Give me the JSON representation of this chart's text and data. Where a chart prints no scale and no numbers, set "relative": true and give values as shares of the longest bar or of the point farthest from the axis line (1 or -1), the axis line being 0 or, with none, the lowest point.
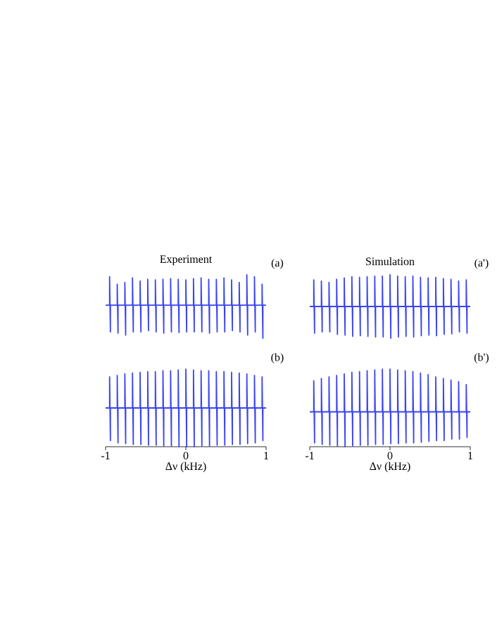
{
  "chart_data": [
    {
      "type": "line",
      "title": "Experiment",
      "annotations": [
        "(a)"
      ],
      "relative": true,
      "tick_labels": false,
      "xlim": [
        -1,
        1
      ],
      "color": "#3a44f0",
      "x": [
        -1,
        -0.95,
        -0.95,
        -0.94,
        -0.94,
        -0.855,
        -0.855,
        -0.845,
        -0.845,
        -0.76,
        -0.76,
        -0.75,
        -0.75,
        -0.665,
        -0.665,
        -0.655,
        -0.655,
        -0.57,
        -0.57,
        -0.56,
        -0.56,
        -0.475,
        -0.475,
        -0.465,
        -0.465,
        -0.38,
        -0.38,
        -0.37,
        -0.37,
        -0.285,
        -0.285,
        -0.275,
        -0.275,
        -0.19,
        -0.19,
        -0.18,
        -0.18,
        -0.095,
        -0.095,
        -0.085,
        -0.085,
        0,
        0,
        0.01,
        0.01,
        0.095,
        0.095,
        0.105,
        0.105,
        0.19,
        0.19,
        0.2,
        0.2,
        0.285,
        0.285,
        0.295,
        0.295,
        0.38,
        0.38,
        0.39,
        0.39,
        0.475,
        0.475,
        0.485,
        0.485,
        0.57,
        0.57,
        0.58,
        0.58,
        0.665,
        0.665,
        0.675,
        0.675,
        0.76,
        0.76,
        0.77,
        0.77,
        0.855,
        0.855,
        0.865,
        0.865,
        0.95,
        0.95,
        0.96,
        0.96,
        1
      ],
      "values": [
        0.52,
        0.52,
        0.97,
        0.1,
        0.52,
        0.52,
        0.85,
        0.08,
        0.52,
        0.52,
        0.88,
        0.05,
        0.52,
        0.52,
        0.95,
        0.1,
        0.52,
        0.52,
        0.9,
        0.1,
        0.52,
        0.52,
        0.93,
        0.12,
        0.52,
        0.52,
        0.92,
        0.1,
        0.52,
        0.52,
        0.93,
        0.08,
        0.52,
        0.52,
        0.94,
        0.1,
        0.52,
        0.52,
        0.93,
        0.09,
        0.52,
        0.52,
        0.92,
        0.1,
        0.52,
        0.52,
        0.94,
        0.1,
        0.52,
        0.52,
        0.95,
        0.1,
        0.52,
        0.52,
        0.93,
        0.08,
        0.52,
        0.52,
        0.93,
        0.1,
        0.52,
        0.52,
        0.95,
        0.1,
        0.52,
        0.52,
        0.92,
        0.12,
        0.52,
        0.52,
        0.88,
        0.1,
        0.52,
        0.52,
        1,
        0.05,
        0.52,
        0.52,
        0.97,
        0.1,
        0.52,
        0.52,
        0.85,
        0,
        0.52,
        0.52
      ]
    },
    {
      "type": "line",
      "title": "Simulation",
      "annotations": [
        "(a')"
      ],
      "relative": true,
      "tick_labels": false,
      "xlim": [
        -1,
        1
      ],
      "color": "#3a44f0",
      "x": [
        -1,
        -0.95,
        -0.95,
        -0.94,
        -0.94,
        -0.855,
        -0.855,
        -0.845,
        -0.845,
        -0.76,
        -0.76,
        -0.75,
        -0.75,
        -0.665,
        -0.665,
        -0.655,
        -0.655,
        -0.57,
        -0.57,
        -0.56,
        -0.56,
        -0.475,
        -0.475,
        -0.465,
        -0.465,
        -0.38,
        -0.38,
        -0.37,
        -0.37,
        -0.285,
        -0.285,
        -0.275,
        -0.275,
        -0.19,
        -0.19,
        -0.18,
        -0.18,
        -0.095,
        -0.095,
        -0.085,
        -0.085,
        0,
        0,
        0.01,
        0.01,
        0.095,
        0.095,
        0.105,
        0.105,
        0.19,
        0.19,
        0.2,
        0.2,
        0.285,
        0.285,
        0.295,
        0.295,
        0.38,
        0.38,
        0.39,
        0.39,
        0.475,
        0.475,
        0.485,
        0.485,
        0.57,
        0.57,
        0.58,
        0.58,
        0.665,
        0.665,
        0.675,
        0.675,
        0.76,
        0.76,
        0.77,
        0.77,
        0.855,
        0.855,
        0.865,
        0.865,
        0.95,
        0.95,
        0.96,
        0.96,
        1
      ],
      "values": [
        0.5,
        0.5,
        0.92,
        0.08,
        0.5,
        0.5,
        0.9,
        0.1,
        0.5,
        0.5,
        0.88,
        0.1,
        0.5,
        0.5,
        0.93,
        0.06,
        0.5,
        0.5,
        0.95,
        0.05,
        0.5,
        0.5,
        0.97,
        0.03,
        0.5,
        0.5,
        0.96,
        0.04,
        0.5,
        0.5,
        0.97,
        0.03,
        0.5,
        0.5,
        0.98,
        0.02,
        0.5,
        0.5,
        0.98,
        0.02,
        0.5,
        0.5,
        1,
        0,
        0.5,
        0.5,
        0.98,
        0.02,
        0.5,
        0.5,
        0.97,
        0.03,
        0.5,
        0.5,
        0.98,
        0.02,
        0.5,
        0.5,
        0.96,
        0.04,
        0.5,
        0.5,
        0.95,
        0.05,
        0.5,
        0.5,
        0.96,
        0.04,
        0.5,
        0.5,
        0.94,
        0.06,
        0.5,
        0.5,
        0.93,
        0.07,
        0.5,
        0.5,
        0.9,
        0.1,
        0.5,
        0.5,
        0.92,
        0.08,
        0.5,
        0.5
      ]
    },
    {
      "type": "line",
      "xlabel": "Δν (kHz)",
      "annotations": [
        "(b)"
      ],
      "relative": true,
      "tick_labels": "x",
      "xlim": [
        -1,
        1
      ],
      "xticks": [
        -1,
        0,
        1
      ],
      "color": "#3a44f0",
      "x": [
        -1,
        -0.95,
        -0.95,
        -0.94,
        -0.94,
        -0.855,
        -0.855,
        -0.845,
        -0.845,
        -0.76,
        -0.76,
        -0.75,
        -0.75,
        -0.665,
        -0.665,
        -0.655,
        -0.655,
        -0.57,
        -0.57,
        -0.56,
        -0.56,
        -0.475,
        -0.475,
        -0.465,
        -0.465,
        -0.38,
        -0.38,
        -0.37,
        -0.37,
        -0.285,
        -0.285,
        -0.275,
        -0.275,
        -0.19,
        -0.19,
        -0.18,
        -0.18,
        -0.095,
        -0.095,
        -0.085,
        -0.085,
        0,
        0,
        0.01,
        0.01,
        0.095,
        0.095,
        0.105,
        0.105,
        0.19,
        0.19,
        0.2,
        0.2,
        0.285,
        0.285,
        0.295,
        0.295,
        0.38,
        0.38,
        0.39,
        0.39,
        0.475,
        0.475,
        0.485,
        0.485,
        0.57,
        0.57,
        0.58,
        0.58,
        0.665,
        0.665,
        0.675,
        0.675,
        0.76,
        0.76,
        0.77,
        0.77,
        0.855,
        0.855,
        0.865,
        0.865,
        0.95,
        0.95,
        0.96,
        0.96,
        1
      ],
      "values": [
        0.5,
        0.5,
        0.9,
        0.08,
        0.5,
        0.5,
        0.92,
        0.05,
        0.5,
        0.5,
        0.94,
        0.04,
        0.5,
        0.5,
        0.95,
        0.03,
        0.5,
        0.5,
        0.96,
        0.03,
        0.5,
        0.5,
        0.97,
        0.02,
        0.5,
        0.5,
        0.97,
        0.02,
        0.5,
        0.5,
        0.98,
        0.01,
        0.5,
        0.5,
        0.98,
        0.01,
        0.5,
        0.5,
        0.99,
        0,
        0.5,
        0.5,
        1,
        0,
        0.5,
        0.5,
        0.99,
        0,
        0.5,
        0.5,
        0.98,
        0.01,
        0.5,
        0.5,
        0.98,
        0.01,
        0.5,
        0.5,
        0.97,
        0.02,
        0.5,
        0.5,
        0.97,
        0.02,
        0.5,
        0.5,
        0.96,
        0.03,
        0.5,
        0.5,
        0.95,
        0.03,
        0.5,
        0.5,
        0.94,
        0.04,
        0.5,
        0.5,
        0.92,
        0.05,
        0.5,
        0.5,
        0.9,
        0.08,
        0.5,
        0.5
      ]
    },
    {
      "type": "line",
      "xlabel": "Δν (kHz)",
      "annotations": [
        "(b')"
      ],
      "relative": true,
      "tick_labels": "x",
      "xlim": [
        -1,
        1
      ],
      "xticks": [
        -1,
        0,
        1
      ],
      "color": "#3a44f0",
      "x": [
        -1,
        -0.95,
        -0.95,
        -0.94,
        -0.94,
        -0.855,
        -0.855,
        -0.845,
        -0.845,
        -0.76,
        -0.76,
        -0.75,
        -0.75,
        -0.665,
        -0.665,
        -0.655,
        -0.655,
        -0.57,
        -0.57,
        -0.56,
        -0.56,
        -0.475,
        -0.475,
        -0.465,
        -0.465,
        -0.38,
        -0.38,
        -0.37,
        -0.37,
        -0.285,
        -0.285,
        -0.275,
        -0.275,
        -0.19,
        -0.19,
        -0.18,
        -0.18,
        -0.095,
        -0.095,
        -0.085,
        -0.085,
        0,
        0,
        0.01,
        0.01,
        0.095,
        0.095,
        0.105,
        0.105,
        0.19,
        0.19,
        0.2,
        0.2,
        0.285,
        0.285,
        0.295,
        0.295,
        0.38,
        0.38,
        0.39,
        0.39,
        0.475,
        0.475,
        0.485,
        0.485,
        0.57,
        0.57,
        0.58,
        0.58,
        0.665,
        0.665,
        0.675,
        0.675,
        0.76,
        0.76,
        0.77,
        0.77,
        0.855,
        0.855,
        0.865,
        0.865,
        0.95,
        0.95,
        0.96,
        0.96,
        1
      ],
      "values": [
        0.45,
        0.45,
        0.85,
        0.05,
        0.45,
        0.45,
        0.88,
        0.03,
        0.45,
        0.45,
        0.9,
        0.02,
        0.45,
        0.45,
        0.92,
        0.01,
        0.45,
        0.45,
        0.94,
        0,
        0.45,
        0.45,
        0.96,
        0.01,
        0.45,
        0.45,
        0.97,
        0.02,
        0.45,
        0.45,
        0.98,
        0.02,
        0.45,
        0.45,
        0.99,
        0.03,
        0.45,
        0.45,
        1,
        0.03,
        0.45,
        0.45,
        1,
        0.04,
        0.45,
        0.45,
        0.99,
        0.04,
        0.45,
        0.45,
        0.98,
        0.05,
        0.45,
        0.45,
        0.97,
        0.05,
        0.45,
        0.45,
        0.95,
        0.06,
        0.45,
        0.45,
        0.93,
        0.07,
        0.45,
        0.45,
        0.9,
        0.08,
        0.45,
        0.45,
        0.88,
        0.08,
        0.45,
        0.45,
        0.86,
        0.1,
        0.45,
        0.45,
        0.84,
        0.1,
        0.45,
        0.45,
        0.8,
        0.12,
        0.45,
        0.45
      ]
    }
  ]
}
